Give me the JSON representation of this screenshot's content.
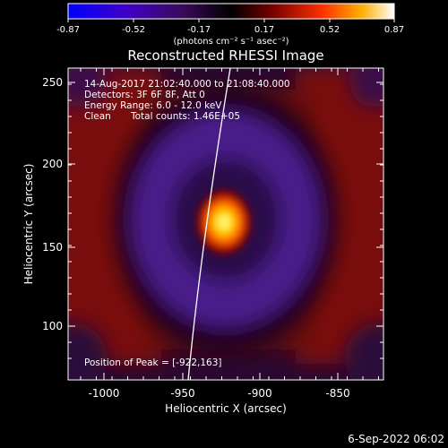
{
  "colorbar": {
    "tick_labels": [
      "-0.87",
      "-0.52",
      "-0.17",
      "0.17",
      "0.52",
      "0.87"
    ],
    "unit_label": "(photons cm⁻² s⁻¹ asec⁻²)",
    "colors": [
      "#0000ff",
      "#4000c0",
      "#2a0a3a",
      "#000000",
      "#800000",
      "#ff3000",
      "#ffaa00",
      "#ffffff"
    ]
  },
  "title": "Reconstructed RHESSI Image",
  "info": {
    "time": "14-Aug-2017 21:02:40.000 to 21:08:40.000",
    "detectors": "Detectors: 3F 6F 8F, Att 0",
    "energy": "Energy Range: 6.0 - 12.0 keV",
    "clean": "Clean",
    "counts": "Total counts: 1.46E+05",
    "peak": "Position of Peak = [-922,163]"
  },
  "axes": {
    "xlabel": "Heliocentric X (arcsec)",
    "ylabel": "Heliocentric Y (arcsec)",
    "xticks": [
      "-1000",
      "-950",
      "-900",
      "-850"
    ],
    "yticks": [
      "100",
      "150",
      "200",
      "250"
    ]
  },
  "footer": {
    "date": "6-Sep-2022 06:02"
  }
}
